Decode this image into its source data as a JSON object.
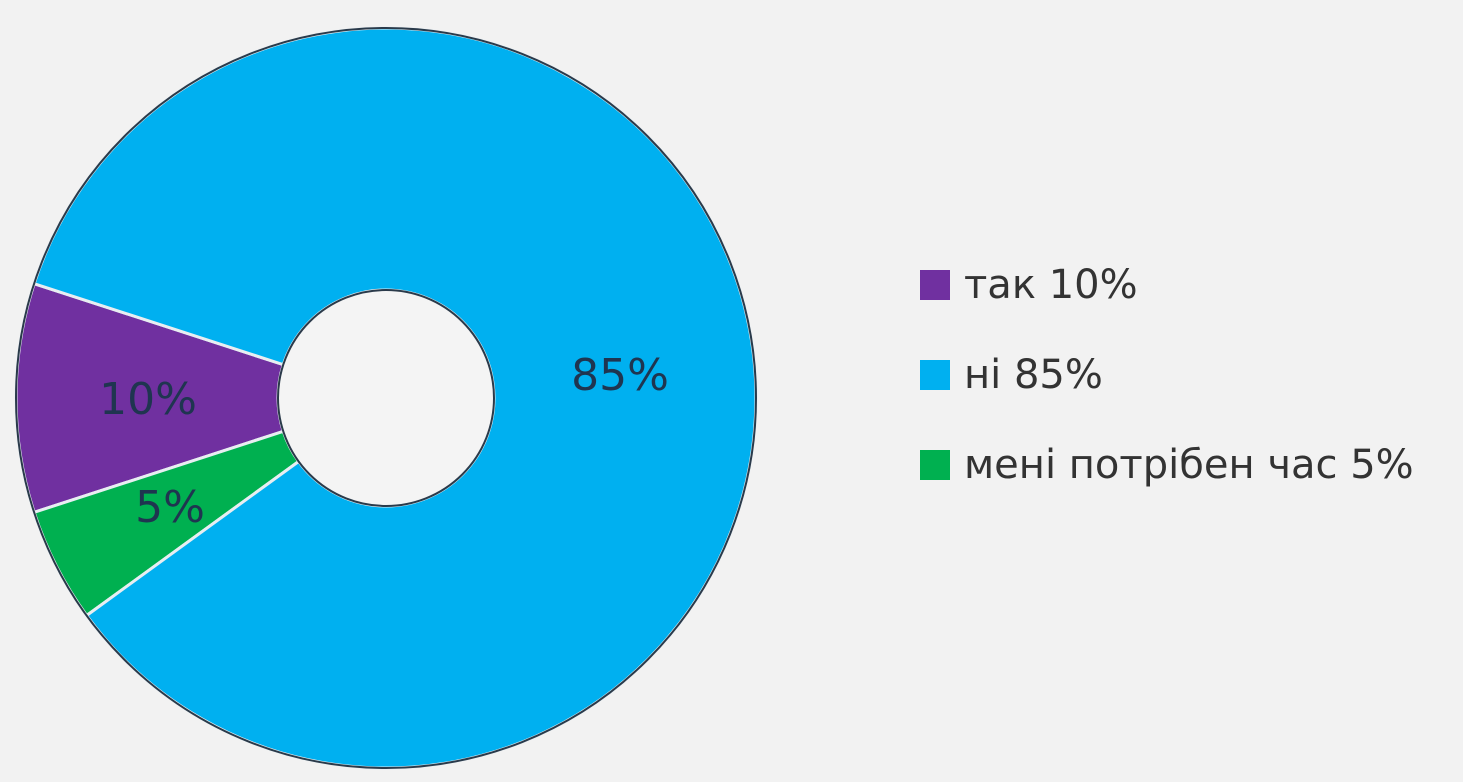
{
  "chart_data": {
    "type": "pie",
    "donut": true,
    "slices": [
      {
        "label": "так",
        "value": 10,
        "color": "#7030a0",
        "data_label": "10%",
        "legend_label": "так 10%"
      },
      {
        "label": "ні",
        "value": 85,
        "color": "#00b0f0",
        "data_label": "85%",
        "legend_label": "ні 85%"
      },
      {
        "label": "мені потрібен час",
        "value": 5,
        "color": "#00b050",
        "data_label": "5%",
        "legend_label": "мені потрібен час 5%"
      }
    ],
    "legend": "right"
  },
  "background": "#f2f2f2"
}
